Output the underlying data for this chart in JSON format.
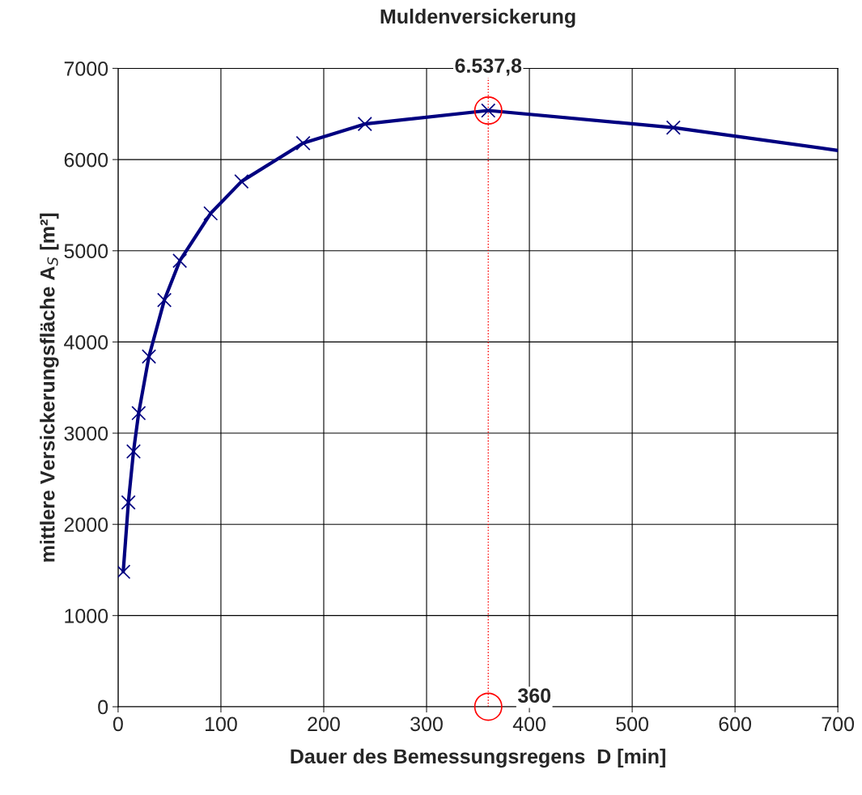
{
  "chart_data": {
    "type": "line",
    "title": "Muldenversickerung",
    "xlabel": "Dauer des Bemessungsregens  D [min]",
    "ylabel": "mittlere Versickerungsfläche A$_{S}$ [m²]",
    "series": [
      {
        "color": "#000080",
        "marker": "none",
        "x": [
          5,
          10,
          15,
          20,
          30,
          45,
          60,
          90,
          120,
          180,
          240,
          360,
          540,
          700
        ],
        "values": [
          1480,
          2240,
          2800,
          3220,
          3840,
          4460,
          4890,
          5410,
          5760,
          6180,
          6390,
          6537.8,
          6350,
          6100
        ]
      },
      {
        "type": "scatter",
        "color": "#000080",
        "marker": "cross",
        "x": [
          5,
          10,
          15,
          20,
          30,
          45,
          60,
          90,
          120,
          180,
          240,
          360,
          540
        ],
        "values": [
          1480,
          2240,
          2800,
          3220,
          3840,
          4460,
          4890,
          5410,
          5760,
          6180,
          6390,
          6537.8,
          6350
        ]
      }
    ],
    "ref_lines": [
      {
        "axis": "x",
        "value": 360,
        "color": "#ff0000",
        "line_style": "dotted"
      }
    ],
    "annotations": [
      {
        "text": "6.537,8",
        "x": 360,
        "y": 6537.8
      },
      {
        "text": "360",
        "x": 360,
        "y": 0
      }
    ],
    "xlim": [
      0,
      700
    ],
    "xticks": [
      0,
      100,
      200,
      300,
      400,
      500,
      600,
      700
    ],
    "ylim": [
      0,
      7000
    ],
    "yticks": [
      0,
      1000,
      2000,
      3000,
      4000,
      5000,
      6000,
      7000
    ],
    "grid": true
  }
}
